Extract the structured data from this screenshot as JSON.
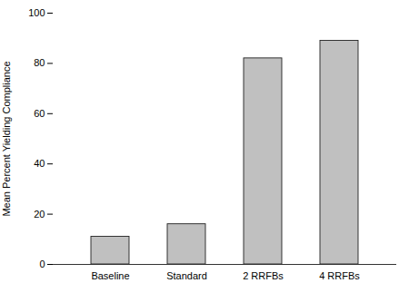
{
  "chart_data": {
    "type": "bar",
    "categories": [
      "Baseline",
      "Standard",
      "2 RRFBs",
      "4 RRFBs"
    ],
    "values": [
      11,
      16,
      82,
      89
    ],
    "color": "#c0c0c0",
    "ylabel": "Mean Percent Yielding Compliance",
    "ylim": [
      0,
      100
    ],
    "yticks": [
      0,
      20,
      40,
      60,
      80,
      100
    ],
    "grid": false
  }
}
